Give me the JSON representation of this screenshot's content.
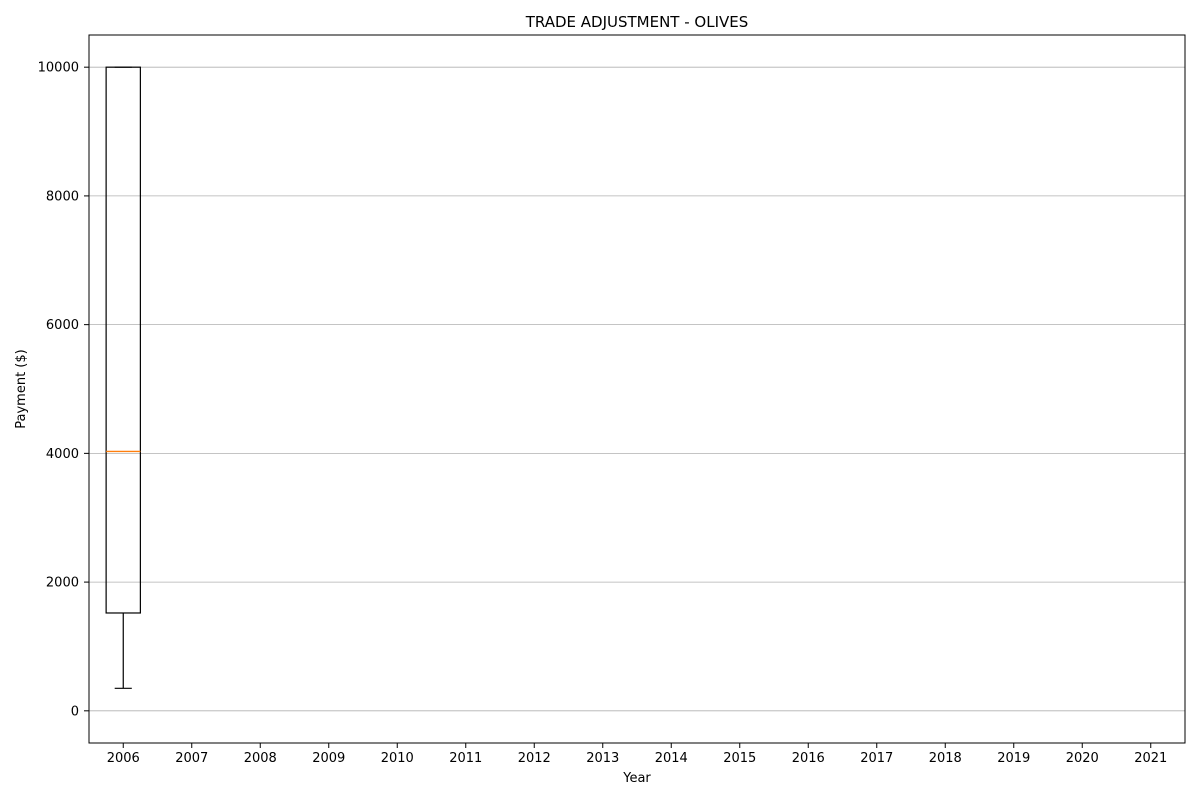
{
  "chart_data": {
    "type": "box",
    "title": "TRADE ADJUSTMENT - OLIVES",
    "xlabel": "Year",
    "ylabel": "Payment ($)",
    "categories": [
      "2006",
      "2007",
      "2008",
      "2009",
      "2010",
      "2011",
      "2012",
      "2013",
      "2014",
      "2015",
      "2016",
      "2017",
      "2018",
      "2019",
      "2020",
      "2021"
    ],
    "ylim": [
      -500,
      10500
    ],
    "yticks": [
      0,
      2000,
      4000,
      6000,
      8000,
      10000
    ],
    "grid": "y",
    "boxes": [
      {
        "category": "2006",
        "whisker_low": 350,
        "q1": 1520,
        "median": 4030,
        "q3": 10000,
        "whisker_high": 10000
      }
    ],
    "colors": {
      "box": "#000000",
      "median": "#ff7f0e",
      "grid": "#b0b0b0"
    }
  }
}
